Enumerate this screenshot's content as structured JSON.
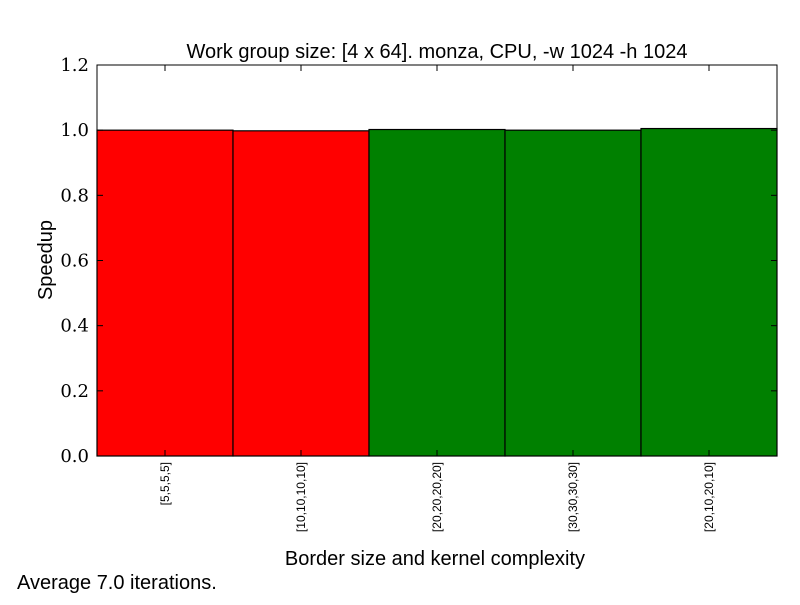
{
  "chart_data": {
    "type": "bar",
    "title": "Work group size: [4 x 64]. monza, CPU, -w 1024 -h 1024",
    "xlabel": "Border size and kernel complexity",
    "ylabel": "Speedup",
    "categories": [
      "[5,5,5,5]",
      "[10,10,10,10]",
      "[20,20,20,20]",
      "[30,30,30,30]",
      "[20,10,20,10]"
    ],
    "values": [
      1.0,
      0.998,
      1.002,
      1.0,
      1.005
    ],
    "bar_colors": [
      "#ff0000",
      "#ff0000",
      "#008000",
      "#008000",
      "#008000"
    ],
    "ylim": [
      0,
      1.2
    ],
    "yticks": [
      0.0,
      0.2,
      0.4,
      0.6,
      0.8,
      1.0,
      1.2
    ],
    "ytick_labels": [
      "0.0",
      "0.2",
      "0.4",
      "0.6",
      "0.8",
      "1.0",
      "1.2"
    ],
    "grid": false,
    "footnote": "Average 7.0 iterations."
  }
}
